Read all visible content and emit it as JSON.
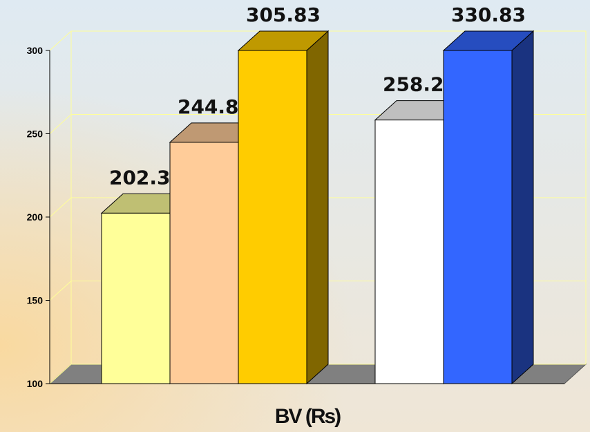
{
  "chart_data": {
    "type": "bar3d",
    "values": [
      202.33,
      244.87,
      305.83,
      258.25,
      330.83
    ],
    "colors": [
      "#ffff99",
      "#ffcc99",
      "#ffcc00",
      "#ffffff",
      "#3366ff"
    ],
    "xlabel": "BV (Rs)",
    "ylim": [
      100,
      300
    ],
    "yticks": [
      100,
      150,
      200,
      250,
      300
    ],
    "grid": true
  }
}
